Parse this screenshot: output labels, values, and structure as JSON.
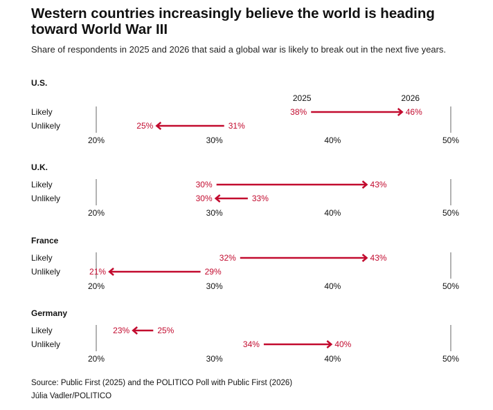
{
  "title": "Western countries increasingly believe the world is heading toward World War III",
  "subtitle": "Share of respondents in 2025 and 2026 that said a global war is likely to break out in the next five years.",
  "source": "Source: Public First (2025) and the POLITICO Poll with Public First (2026)",
  "credit": "Júlia Vadler/POLITICO",
  "colors": {
    "accent": "#c20a2e",
    "text": "#111111",
    "axis": "#666666"
  },
  "chart_data": {
    "type": "arrow-dumbbell",
    "xlim": [
      20,
      50
    ],
    "ticks": [
      20,
      30,
      40,
      50
    ],
    "tick_labels": [
      "20%",
      "30%",
      "40%",
      "50%"
    ],
    "year_labels": [
      "2025",
      "2026"
    ],
    "row_labels": [
      "Likely",
      "Unlikely"
    ],
    "countries": [
      {
        "name": "U.S.",
        "rows": [
          {
            "label": "Likely",
            "from": 38,
            "to": 46
          },
          {
            "label": "Unlikely",
            "from": 31,
            "to": 25
          }
        ]
      },
      {
        "name": "U.K.",
        "rows": [
          {
            "label": "Likely",
            "from": 30,
            "to": 43
          },
          {
            "label": "Unlikely",
            "from": 33,
            "to": 30
          }
        ]
      },
      {
        "name": "France",
        "rows": [
          {
            "label": "Likely",
            "from": 32,
            "to": 43
          },
          {
            "label": "Unlikely",
            "from": 29,
            "to": 21
          }
        ]
      },
      {
        "name": "Germany",
        "rows": [
          {
            "label": "Likely",
            "from": 25,
            "to": 23
          },
          {
            "label": "Unlikely",
            "from": 34,
            "to": 40
          }
        ]
      }
    ]
  }
}
